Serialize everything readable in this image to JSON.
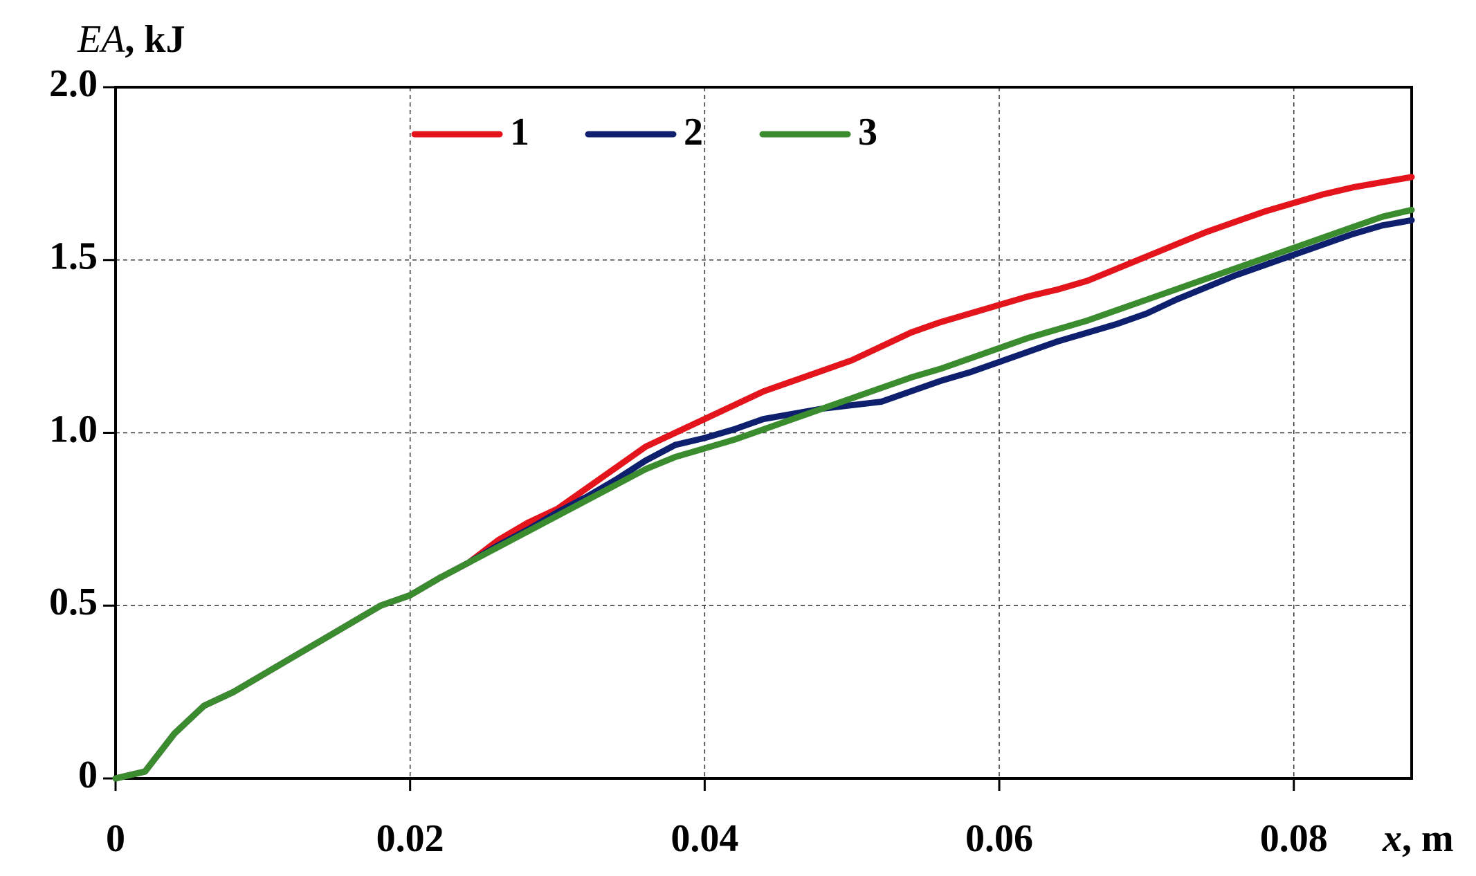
{
  "chart_data": {
    "type": "line",
    "x_label": {
      "symbol": "x",
      "unit": ", m"
    },
    "y_label": {
      "symbol": "EA",
      "unit": ", kJ"
    },
    "x": [
      0,
      0.002,
      0.004,
      0.006,
      0.008,
      0.01,
      0.012,
      0.014,
      0.016,
      0.018,
      0.02,
      0.022,
      0.024,
      0.026,
      0.028,
      0.03,
      0.032,
      0.034,
      0.036,
      0.038,
      0.04,
      0.042,
      0.044,
      0.046,
      0.048,
      0.05,
      0.052,
      0.054,
      0.056,
      0.058,
      0.06,
      0.062,
      0.064,
      0.066,
      0.068,
      0.07,
      0.072,
      0.074,
      0.076,
      0.078,
      0.08,
      0.082,
      0.084,
      0.086,
      0.088
    ],
    "series": [
      {
        "name": "1",
        "color": "#e3141b",
        "values": [
          0,
          0.02,
          0.13,
          0.21,
          0.25,
          0.3,
          0.35,
          0.4,
          0.45,
          0.5,
          0.53,
          0.58,
          0.625,
          0.69,
          0.74,
          0.78,
          0.84,
          0.9,
          0.96,
          1.0,
          1.04,
          1.08,
          1.12,
          1.15,
          1.18,
          1.21,
          1.25,
          1.29,
          1.32,
          1.345,
          1.37,
          1.395,
          1.415,
          1.44,
          1.475,
          1.51,
          1.545,
          1.58,
          1.61,
          1.64,
          1.665,
          1.69,
          1.71,
          1.725,
          1.74
        ]
      },
      {
        "name": "2",
        "color": "#0e1f6e",
        "values": [
          0,
          0.02,
          0.13,
          0.21,
          0.25,
          0.3,
          0.35,
          0.4,
          0.45,
          0.5,
          0.53,
          0.58,
          0.625,
          0.675,
          0.72,
          0.77,
          0.815,
          0.865,
          0.92,
          0.965,
          0.985,
          1.01,
          1.04,
          1.055,
          1.07,
          1.08,
          1.09,
          1.12,
          1.15,
          1.175,
          1.205,
          1.235,
          1.265,
          1.29,
          1.315,
          1.345,
          1.385,
          1.42,
          1.455,
          1.485,
          1.515,
          1.545,
          1.575,
          1.6,
          1.615
        ]
      },
      {
        "name": "3",
        "color": "#3b8b2f",
        "values": [
          0,
          0.02,
          0.13,
          0.21,
          0.25,
          0.3,
          0.35,
          0.4,
          0.45,
          0.5,
          0.53,
          0.58,
          0.625,
          0.67,
          0.715,
          0.76,
          0.805,
          0.85,
          0.895,
          0.93,
          0.955,
          0.98,
          1.01,
          1.04,
          1.07,
          1.1,
          1.13,
          1.16,
          1.185,
          1.215,
          1.245,
          1.275,
          1.3,
          1.325,
          1.355,
          1.385,
          1.415,
          1.445,
          1.475,
          1.505,
          1.535,
          1.565,
          1.595,
          1.625,
          1.645
        ]
      }
    ],
    "xlim": [
      0,
      0.088
    ],
    "xticks": [
      0,
      0.02,
      0.04,
      0.06,
      0.08
    ],
    "ylim": [
      0,
      2
    ],
    "yticks": [
      0,
      0.5,
      {
        "value": 1,
        "label": "1.0"
      },
      1.5,
      {
        "value": 2,
        "label": "2.0"
      }
    ],
    "grid": true,
    "legend": "top"
  }
}
